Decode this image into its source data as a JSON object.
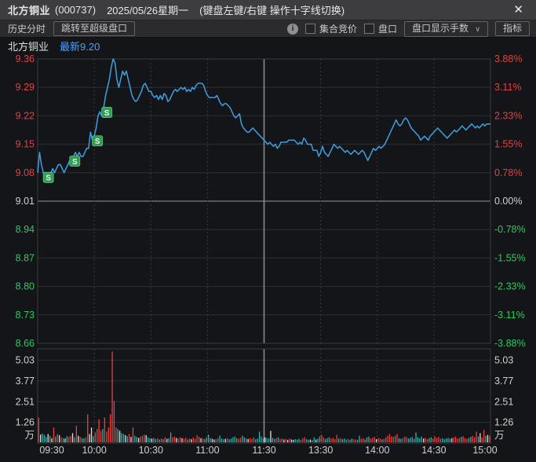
{
  "title_bar": {
    "stock_name": "北方铜业",
    "stock_code": "(000737)",
    "date": "2025/05/26星期一",
    "hint": "(键盘左键/右键 操作十字线切换)",
    "close": "✕"
  },
  "toolbar": {
    "history_label": "历史分时",
    "super_level2_button": "跳转至超级盘口",
    "info_icon_glyph": "i",
    "call_auction_label": "集合竞价",
    "order_book_label": "盘口",
    "lots_dropdown_label": "盘口显示手数",
    "dropdown_chevron": "∨",
    "indicator_button": "指标"
  },
  "info_row": {
    "stock_name": "北方铜业",
    "latest_label": "最新",
    "latest_value": "9.20"
  },
  "colors": {
    "up_red": "#e04242",
    "down_green": "#2eca5c",
    "flat_white": "#d8d8d8",
    "price_line": "#3f9fe0",
    "latest_blue": "#4aa2ff",
    "marker_green": "#2f9e55",
    "vol_red": "#e8433f",
    "vol_teal": "#2fb3ac",
    "vol_white": "#e0e0e0",
    "grid": "#2e2e32",
    "grid_zero": "#55555a",
    "grid_vert": "#3c3c40",
    "grid_midday": "#8a8a8d",
    "axis_white": "#d0d0d0"
  },
  "chart_data": {
    "type": "line+bar",
    "title": "北方铜业 分时走势",
    "prev_close": 9.01,
    "price_axis_left": [
      "9.36",
      "9.29",
      "9.22",
      "9.15",
      "9.08",
      "9.01",
      "8.94",
      "8.87",
      "8.80",
      "8.73",
      "8.66"
    ],
    "pct_axis_right": [
      "3.88%",
      "3.11%",
      "2.33%",
      "1.55%",
      "0.78%",
      "0.00%",
      "-0.78%",
      "-1.55%",
      "-2.33%",
      "-3.11%",
      "-3.88%"
    ],
    "price_min": 8.66,
    "price_max": 9.36,
    "volume_axis": [
      "5.03",
      "3.77",
      "2.51",
      "1.26"
    ],
    "volume_axis_values": [
      5.03,
      3.77,
      2.51,
      1.26
    ],
    "volume_unit": "万",
    "time_ticks": [
      "09:30",
      "10:00",
      "10:30",
      "11:00",
      "11:30",
      "13:30",
      "14:00",
      "14:30",
      "15:00"
    ],
    "time_tick_minutes": [
      0,
      30,
      60,
      90,
      120,
      150,
      180,
      210,
      240
    ],
    "total_minutes": 240,
    "sell_markers": [
      {
        "minute": 4,
        "price": 9.08,
        "label": "S"
      },
      {
        "minute": 18,
        "price": 9.12,
        "label": "S"
      },
      {
        "minute": 30,
        "price": 9.17,
        "label": "S"
      },
      {
        "minute": 35,
        "price": 9.24,
        "label": "S"
      }
    ],
    "prices": [
      9.08,
      9.13,
      9.1,
      9.08,
      9.07,
      9.08,
      9.07,
      9.08,
      9.09,
      9.08,
      9.09,
      9.1,
      9.1,
      9.09,
      9.08,
      9.09,
      9.1,
      9.11,
      9.12,
      9.12,
      9.13,
      9.12,
      9.13,
      9.12,
      9.12,
      9.13,
      9.14,
      9.14,
      9.18,
      9.16,
      9.17,
      9.19,
      9.22,
      9.23,
      9.22,
      9.24,
      9.27,
      9.29,
      9.31,
      9.34,
      9.36,
      9.35,
      9.31,
      9.29,
      9.31,
      9.33,
      9.32,
      9.33,
      9.31,
      9.29,
      9.27,
      9.26,
      9.255,
      9.26,
      9.27,
      9.28,
      9.295,
      9.3,
      9.29,
      9.28,
      9.28,
      9.27,
      9.265,
      9.27,
      9.26,
      9.27,
      9.26,
      9.275,
      9.27,
      9.255,
      9.26,
      9.27,
      9.28,
      9.285,
      9.28,
      9.285,
      9.29,
      9.285,
      9.29,
      9.28,
      9.285,
      9.28,
      9.29,
      9.285,
      9.295,
      9.3,
      9.3,
      9.3,
      9.295,
      9.28,
      9.27,
      9.265,
      9.265,
      9.265,
      9.265,
      9.27,
      9.26,
      9.25,
      9.245,
      9.25,
      9.25,
      9.245,
      9.24,
      9.23,
      9.22,
      9.215,
      9.22,
      9.225,
      9.2,
      9.19,
      9.185,
      9.18,
      9.18,
      9.185,
      9.19,
      9.185,
      9.18,
      9.175,
      9.17,
      9.165,
      9.16,
      9.155,
      9.15,
      9.155,
      9.15,
      9.145,
      9.15,
      9.14,
      9.145,
      9.155,
      9.155,
      9.155,
      9.155,
      9.16,
      9.16,
      9.16,
      9.16,
      9.155,
      9.15,
      9.155,
      9.15,
      9.165,
      9.16,
      9.15,
      9.15,
      9.15,
      9.135,
      9.135,
      9.135,
      9.12,
      9.13,
      9.145,
      9.13,
      9.125,
      9.12,
      9.13,
      9.14,
      9.15,
      9.145,
      9.14,
      9.145,
      9.14,
      9.135,
      9.13,
      9.135,
      9.13,
      9.125,
      9.13,
      9.135,
      9.13,
      9.125,
      9.13,
      9.135,
      9.13,
      9.12,
      9.11,
      9.12,
      9.13,
      9.14,
      9.135,
      9.14,
      9.145,
      9.14,
      9.145,
      9.15,
      9.16,
      9.17,
      9.18,
      9.19,
      9.2,
      9.21,
      9.2,
      9.195,
      9.2,
      9.21,
      9.215,
      9.21,
      9.2,
      9.19,
      9.185,
      9.18,
      9.175,
      9.17,
      9.16,
      9.165,
      9.17,
      9.165,
      9.16,
      9.17,
      9.175,
      9.18,
      9.185,
      9.19,
      9.185,
      9.18,
      9.175,
      9.17,
      9.165,
      9.17,
      9.175,
      9.18,
      9.185,
      9.18,
      9.185,
      9.19,
      9.195,
      9.19,
      9.185,
      9.19,
      9.195,
      9.2,
      9.195,
      9.19,
      9.195,
      9.19,
      9.195,
      9.2,
      9.195,
      9.2,
      9.2,
      9.2
    ],
    "volumes": [
      1.55,
      0.52,
      0.58,
      0.5,
      0.38,
      0.55,
      0.45,
      0.3,
      0.95,
      0.4,
      0.55,
      0.48,
      0.35,
      0.3,
      0.28,
      0.42,
      0.38,
      0.45,
      0.6,
      0.35,
      1.05,
      0.45,
      0.38,
      0.3,
      0.28,
      0.35,
      1.75,
      0.55,
      0.95,
      0.42,
      0.65,
      0.85,
      1.45,
      0.75,
      0.85,
      1.55,
      0.7,
      0.95,
      1.75,
      5.55,
      2.55,
      0.95,
      0.85,
      0.75,
      0.6,
      0.55,
      0.48,
      0.42,
      0.55,
      0.38,
      0.95,
      0.45,
      0.38,
      0.32,
      0.4,
      0.45,
      0.52,
      0.48,
      0.35,
      0.3,
      0.28,
      0.32,
      0.25,
      0.3,
      0.22,
      0.28,
      0.24,
      0.35,
      0.26,
      0.3,
      0.65,
      0.35,
      0.4,
      0.32,
      0.28,
      0.35,
      0.3,
      0.26,
      0.32,
      0.22,
      0.28,
      0.24,
      0.35,
      0.26,
      0.48,
      0.38,
      0.3,
      0.28,
      0.25,
      0.35,
      0.52,
      0.3,
      0.26,
      0.22,
      0.25,
      0.3,
      0.45,
      0.28,
      0.24,
      0.26,
      0.3,
      0.24,
      0.28,
      0.35,
      0.4,
      0.3,
      0.26,
      0.32,
      0.45,
      0.35,
      0.28,
      0.25,
      0.3,
      0.26,
      0.35,
      0.24,
      0.28,
      0.7,
      0.4,
      0.3,
      0.35,
      0.3,
      0.28,
      0.75,
      0.32,
      0.26,
      0.3,
      0.35,
      0.25,
      0.28,
      0.22,
      0.25,
      0.2,
      0.28,
      0.22,
      0.2,
      0.24,
      0.22,
      0.26,
      0.2,
      0.3,
      0.35,
      0.24,
      0.2,
      0.22,
      0.18,
      0.35,
      0.22,
      0.28,
      0.4,
      0.5,
      0.35,
      0.25,
      0.3,
      0.35,
      0.28,
      0.32,
      0.24,
      0.5,
      0.28,
      0.3,
      0.24,
      0.28,
      0.22,
      0.25,
      0.2,
      0.28,
      0.24,
      0.22,
      0.2,
      0.45,
      0.26,
      0.3,
      0.22,
      0.35,
      0.4,
      0.28,
      0.32,
      0.38,
      0.24,
      0.3,
      0.28,
      0.22,
      0.26,
      0.35,
      0.45,
      0.55,
      0.4,
      0.38,
      0.45,
      0.55,
      0.3,
      0.26,
      0.3,
      0.4,
      0.35,
      0.28,
      0.32,
      0.38,
      0.26,
      0.65,
      0.35,
      0.3,
      0.4,
      0.28,
      0.32,
      0.24,
      0.3,
      0.35,
      0.28,
      0.4,
      0.32,
      0.38,
      0.26,
      0.3,
      0.24,
      0.28,
      0.32,
      0.26,
      0.3,
      0.35,
      0.4,
      0.28,
      0.32,
      0.38,
      0.42,
      0.3,
      0.26,
      0.32,
      0.38,
      0.45,
      0.35,
      0.7,
      0.4,
      0.6,
      0.35,
      0.8,
      0.45,
      0.5,
      0.45
    ],
    "volume_colors": "rwtttwtwrtrwrtwtrrwtrwrttrrwwtrrrrtrrrrrrrtwttwtrwrttwrrrwttwttrtrtrwttrrwrrwrrtrwrrrrwrttttwwrrtttwrtttttrrtttwrrrtttttтttwttrtrrwrwrwwtttrrrttwttwttrrtttrrrrtrtttrttrrttrrtttrrrwrrtrrrrrrrrttrrrttttttttтrrttrrrrrtttttтrrrrtrrrttrrrtwrrtwrrw"
  }
}
